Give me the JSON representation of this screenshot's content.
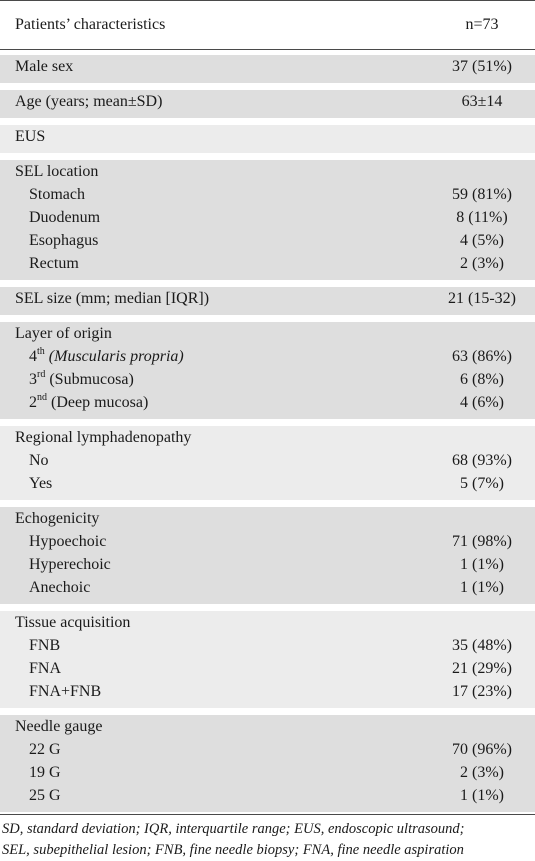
{
  "header": {
    "label": "Patients’ characteristics",
    "value": "n=73"
  },
  "rows": {
    "male_sex": {
      "label": "Male sex",
      "value": "37 (51%)"
    },
    "age": {
      "label": "Age (years; mean±SD)",
      "value": "63±14"
    },
    "eus": {
      "label": "EUS",
      "value": ""
    },
    "sel_location": {
      "label": "SEL location",
      "items": [
        {
          "label": "Stomach",
          "value": "59 (81%)"
        },
        {
          "label": "Duodenum",
          "value": "8 (11%)"
        },
        {
          "label": "Esophagus",
          "value": "4 (5%)"
        },
        {
          "label": "Rectum",
          "value": "2 (3%)"
        }
      ]
    },
    "sel_size": {
      "label": "SEL size (mm; median [IQR])",
      "value": "21 (15-32)"
    },
    "layer": {
      "label": "Layer of origin",
      "items": [
        {
          "num": "4",
          "sup": "th",
          "text": "(Muscularis propria)",
          "value": "63 (86%)"
        },
        {
          "num": "3",
          "sup": "rd",
          "text": "(Submucosa)",
          "value": "6 (8%)"
        },
        {
          "num": "2",
          "sup": "nd",
          "text": "(Deep mucosa)",
          "value": "4 (6%)"
        }
      ]
    },
    "lymph": {
      "label": "Regional lymphadenopathy",
      "items": [
        {
          "label": "No",
          "value": "68 (93%)"
        },
        {
          "label": "Yes",
          "value": "5 (7%)"
        }
      ]
    },
    "echo": {
      "label": "Echogenicity",
      "items": [
        {
          "label": "Hypoechoic",
          "value": "71 (98%)"
        },
        {
          "label": "Hyperechoic",
          "value": "1 (1%)"
        },
        {
          "label": "Anechoic",
          "value": "1 (1%)"
        }
      ]
    },
    "tissue": {
      "label": "Tissue acquisition",
      "items": [
        {
          "label": "FNB",
          "value": "35 (48%)"
        },
        {
          "label": "FNA",
          "value": "21 (29%)"
        },
        {
          "label": "FNA+FNB",
          "value": "17 (23%)"
        }
      ]
    },
    "needle": {
      "label": "Needle gauge",
      "items": [
        {
          "label": "22 G",
          "value": "70 (96%)"
        },
        {
          "label": "19 G",
          "value": "2 (3%)"
        },
        {
          "label": "25 G",
          "value": "1 (1%)"
        }
      ]
    }
  },
  "footnote": {
    "line1": "SD, standard deviation; IQR, interquartile range; EUS, endoscopic ultrasound;",
    "line2": "SEL, subepithelial lesion; FNB, fine needle biopsy; FNA, fine needle aspiration"
  }
}
